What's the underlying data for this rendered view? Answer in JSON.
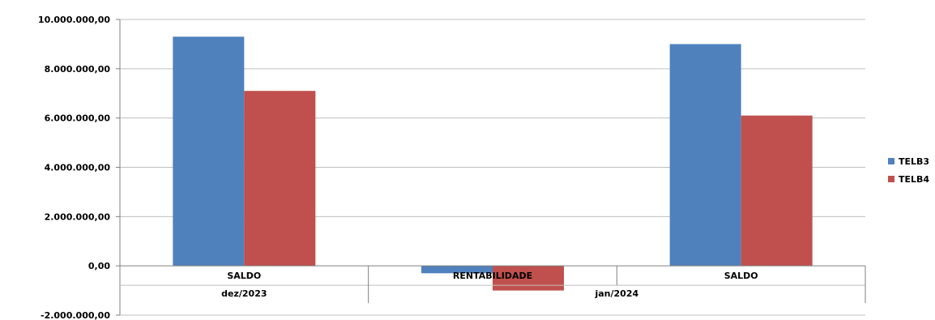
{
  "chart_data": {
    "type": "bar",
    "groups": [
      {
        "label": "dez/2023",
        "categories": [
          "SALDO"
        ]
      },
      {
        "label": "jan/2024",
        "categories": [
          "RENTABILIDADE",
          "SALDO"
        ]
      }
    ],
    "categories": [
      "SALDO",
      "RENTABILIDADE",
      "SALDO"
    ],
    "series": [
      {
        "name": "TELB3",
        "color": "#4F81BD",
        "values": [
          9300000,
          -300000,
          9000000
        ]
      },
      {
        "name": "TELB4",
        "color": "#C0504D",
        "values": [
          7100000,
          -1000000,
          6100000
        ]
      }
    ],
    "ylim": [
      -2000000,
      10000000
    ],
    "yticks": [
      "10.000.000,00",
      "8.000.000,00",
      "6.000.000,00",
      "4.000.000,00",
      "2.000.000,00",
      "0,00",
      "-2.000.000,00"
    ],
    "ytick_values": [
      10000000,
      8000000,
      6000000,
      4000000,
      2000000,
      0,
      -2000000
    ],
    "grid": true,
    "legend_position": "right",
    "title": "",
    "xlabel": "",
    "ylabel": ""
  }
}
